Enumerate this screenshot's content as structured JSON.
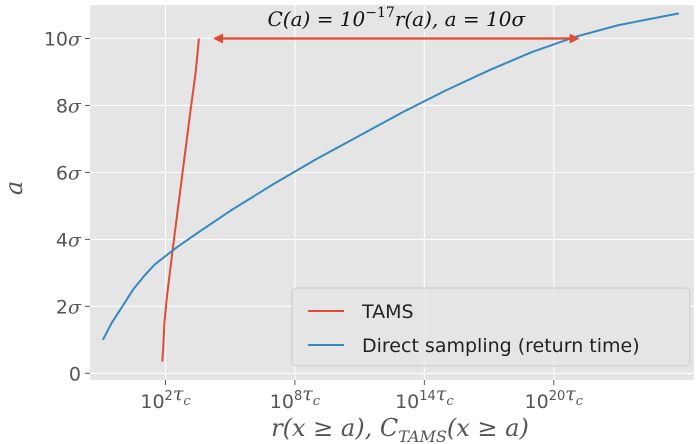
{
  "chart_data": {
    "type": "line",
    "x_scale": "log10",
    "x_unit": "τc",
    "xlim_log10": [
      -1.5,
      26.5
    ],
    "ylim": [
      -0.2,
      11
    ],
    "xlabel": "r(x ≥ a), C_TAMS(x ≥ a)",
    "ylabel": "a",
    "x_ticks": [
      {
        "value_log10": 2,
        "label": "10²τc"
      },
      {
        "value_log10": 8,
        "label": "10⁸τc"
      },
      {
        "value_log10": 14,
        "label": "10¹⁴τc"
      },
      {
        "value_log10": 20,
        "label": "10²⁰τc"
      }
    ],
    "y_ticks": [
      {
        "value": 0,
        "label": "0"
      },
      {
        "value": 2,
        "label": "2σ"
      },
      {
        "value": 4,
        "label": "4σ"
      },
      {
        "value": 6,
        "label": "6σ"
      },
      {
        "value": 8,
        "label": "8σ"
      },
      {
        "value": 10,
        "label": "10σ"
      }
    ],
    "grid": true,
    "legend_position": "lower-right",
    "series": [
      {
        "name": "TAMS",
        "color": "#e24a33",
        "points_log10x_y": [
          [
            1.85,
            0.35
          ],
          [
            1.9,
            0.8
          ],
          [
            1.95,
            1.5
          ],
          [
            2.05,
            2.2
          ],
          [
            2.2,
            3.0
          ],
          [
            2.35,
            3.8
          ],
          [
            2.55,
            4.8
          ],
          [
            2.75,
            5.8
          ],
          [
            2.95,
            6.8
          ],
          [
            3.15,
            7.8
          ],
          [
            3.4,
            9.0
          ],
          [
            3.55,
            10.0
          ]
        ]
      },
      {
        "name": "Direct sampling (return time)",
        "color": "#348abd",
        "points_log10x_y": [
          [
            -0.9,
            1.0
          ],
          [
            -0.5,
            1.5
          ],
          [
            0,
            2.0
          ],
          [
            0.5,
            2.5
          ],
          [
            1.0,
            2.9
          ],
          [
            1.5,
            3.25
          ],
          [
            2.0,
            3.5
          ],
          [
            2.5,
            3.75
          ],
          [
            3.5,
            4.2
          ],
          [
            5.0,
            4.85
          ],
          [
            7.0,
            5.65
          ],
          [
            9.0,
            6.4
          ],
          [
            11.0,
            7.1
          ],
          [
            13.0,
            7.8
          ],
          [
            15.0,
            8.45
          ],
          [
            17.0,
            9.05
          ],
          [
            19.0,
            9.6
          ],
          [
            21.0,
            10.05
          ],
          [
            23.0,
            10.4
          ],
          [
            25.8,
            10.75
          ]
        ]
      }
    ],
    "annotation": {
      "text": "C(a) = 10⁻¹⁷r(a), a = 10σ",
      "color": "#e24a33",
      "arrow_from_log10x": 4.2,
      "arrow_to_log10x": 21.2,
      "y": 10
    }
  },
  "colors": {
    "plot_background": "#e5e5e5",
    "grid": "#ffffff",
    "tams": "#e24a33",
    "direct": "#348abd"
  }
}
